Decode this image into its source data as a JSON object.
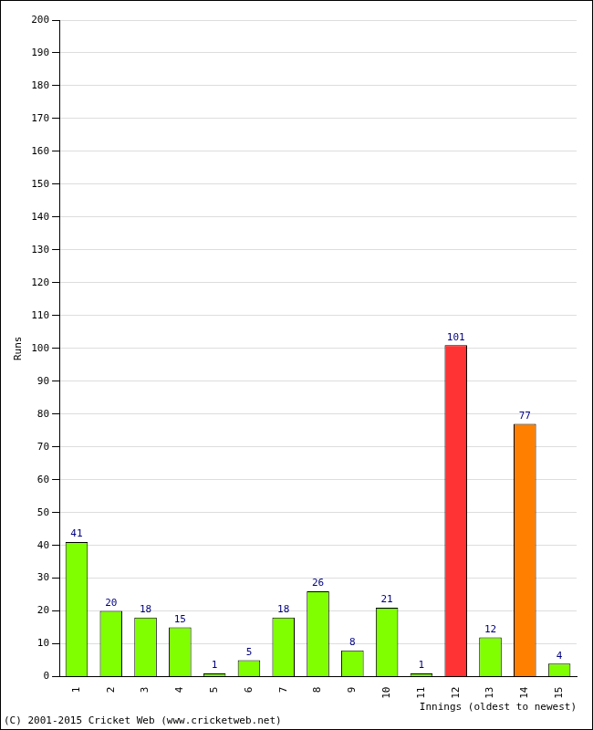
{
  "chart_data": {
    "type": "bar",
    "x_label": "Innings (oldest to newest)",
    "y_label": "Runs",
    "annotations": [
      "(C) 2001-2015 Cricket Web (www.cricketweb.net)"
    ],
    "categories": [
      "1",
      "2",
      "3",
      "4",
      "5",
      "6",
      "7",
      "8",
      "9",
      "10",
      "11",
      "12",
      "13",
      "14",
      "15"
    ],
    "values": [
      41,
      20,
      18,
      15,
      1,
      5,
      18,
      26,
      8,
      21,
      1,
      101,
      12,
      77,
      4
    ],
    "colors": [
      "#80ff00",
      "#80ff00",
      "#80ff00",
      "#80ff00",
      "#80ff00",
      "#80ff00",
      "#80ff00",
      "#80ff00",
      "#80ff00",
      "#80ff00",
      "#80ff00",
      "#ff3333",
      "#80ff00",
      "#ff8000",
      "#80ff00"
    ],
    "ylim": [
      0,
      200
    ],
    "yticks": [
      0,
      10,
      20,
      30,
      40,
      50,
      60,
      70,
      80,
      90,
      100,
      110,
      120,
      130,
      140,
      150,
      160,
      170,
      180,
      190,
      200
    ],
    "grid": true,
    "data_labels": true
  }
}
